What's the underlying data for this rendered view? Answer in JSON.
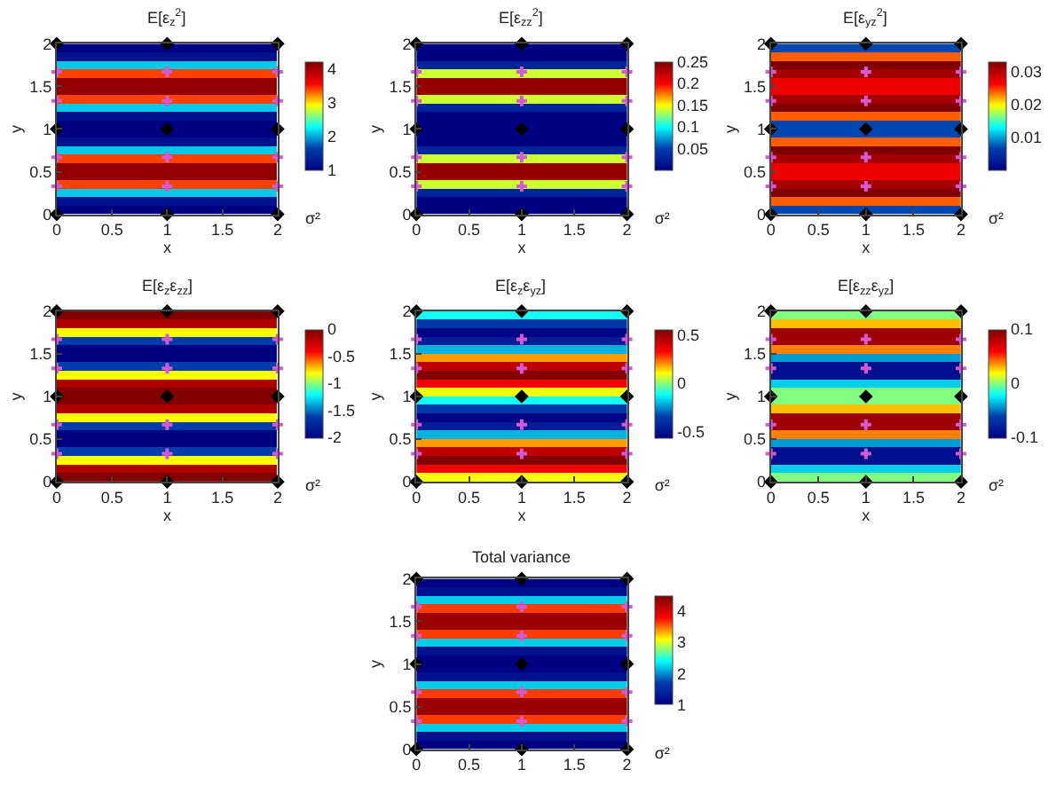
{
  "chart_data": [
    {
      "type": "heatmap",
      "title": "E[ε$_{z}$$^{2}$]",
      "xlabel": "x",
      "ylabel": "y",
      "clabel": "σ²",
      "y": [
        1.95,
        1.85,
        1.75,
        1.65,
        1.55,
        1.45,
        1.35,
        1.25,
        1.15,
        1.05,
        0.95,
        0.85,
        0.75,
        0.65,
        0.55,
        0.45,
        0.35,
        0.25,
        0.15,
        0.05
      ],
      "cells": [
        [
          1.0,
          1.0
        ],
        [
          1.2,
          1.2
        ],
        [
          2.1,
          2.1
        ],
        [
          3.4,
          3.4
        ],
        [
          4.1,
          4.1
        ],
        [
          4.1,
          4.1
        ],
        [
          3.4,
          3.4
        ],
        [
          2.1,
          2.1
        ],
        [
          1.2,
          1.2
        ],
        [
          1.0,
          1.0
        ],
        [
          1.0,
          1.0
        ],
        [
          1.2,
          1.2
        ],
        [
          2.1,
          2.1
        ],
        [
          3.4,
          3.4
        ],
        [
          4.1,
          4.1
        ],
        [
          4.1,
          4.1
        ],
        [
          3.4,
          3.4
        ],
        [
          2.1,
          2.1
        ],
        [
          1.2,
          1.2
        ],
        [
          1.0,
          1.0
        ]
      ],
      "clim": [
        1,
        4.2
      ],
      "cticks": [
        1,
        2,
        3,
        4
      ],
      "xlim": [
        0,
        2
      ],
      "ylim": [
        0,
        2
      ],
      "xticks": [
        0,
        0.5,
        1,
        1.5,
        2
      ],
      "yticks": [
        0,
        0.5,
        1,
        1.5,
        2
      ],
      "series": [
        {
          "type": "scatter",
          "marker": "diamond",
          "color": "#000000",
          "x": [
            0,
            1,
            2,
            0,
            1,
            2,
            0,
            1,
            2
          ],
          "values": [
            0,
            0,
            0,
            1,
            1,
            1,
            2,
            2,
            2
          ]
        },
        {
          "type": "scatter",
          "marker": "cross",
          "color": "#d45ad4",
          "x": [
            0,
            1,
            2,
            0,
            1,
            2,
            0,
            1,
            2,
            0,
            1,
            2
          ],
          "values": [
            0.33,
            0.33,
            0.33,
            0.67,
            0.67,
            0.67,
            1.33,
            1.33,
            1.33,
            1.67,
            1.67,
            1.67
          ]
        }
      ]
    },
    {
      "type": "heatmap",
      "title": "E[ε$_{zz}$$^{2}$]",
      "xlabel": "x",
      "ylabel": "y",
      "clabel": "σ²",
      "y": [
        1.95,
        1.85,
        1.75,
        1.65,
        1.55,
        1.45,
        1.35,
        1.25,
        1.15,
        1.05,
        0.95,
        0.85,
        0.75,
        0.65,
        0.55,
        0.45,
        0.35,
        0.25,
        0.15,
        0.05
      ],
      "cells": [
        [
          0,
          0
        ],
        [
          0,
          0
        ],
        [
          0.03,
          0.03
        ],
        [
          0.14,
          0.14
        ],
        [
          0.24,
          0.24
        ],
        [
          0.24,
          0.24
        ],
        [
          0.14,
          0.14
        ],
        [
          0.03,
          0.03
        ],
        [
          0,
          0
        ],
        [
          0,
          0
        ],
        [
          0,
          0
        ],
        [
          0,
          0
        ],
        [
          0.03,
          0.03
        ],
        [
          0.14,
          0.14
        ],
        [
          0.24,
          0.24
        ],
        [
          0.24,
          0.24
        ],
        [
          0.14,
          0.14
        ],
        [
          0.03,
          0.03
        ],
        [
          0,
          0
        ],
        [
          0,
          0
        ]
      ],
      "clim": [
        0,
        0.25
      ],
      "cticks": [
        0.05,
        0.1,
        0.15,
        0.2,
        0.25
      ],
      "xlim": [
        0,
        2
      ],
      "ylim": [
        0,
        2
      ],
      "xticks": [
        0,
        0.5,
        1,
        1.5,
        2
      ],
      "yticks": [
        0,
        0.5,
        1,
        1.5,
        2
      ],
      "series": [
        {
          "type": "scatter",
          "marker": "diamond",
          "color": "#000000",
          "x": [
            0,
            1,
            2,
            0,
            1,
            2,
            0,
            1,
            2
          ],
          "values": [
            0,
            0,
            0,
            1,
            1,
            1,
            2,
            2,
            2
          ]
        },
        {
          "type": "scatter",
          "marker": "cross",
          "color": "#d45ad4",
          "x": [
            0,
            1,
            2,
            0,
            1,
            2,
            0,
            1,
            2,
            0,
            1,
            2
          ],
          "values": [
            0.33,
            0.33,
            0.33,
            0.67,
            0.67,
            0.67,
            1.33,
            1.33,
            1.33,
            1.67,
            1.67,
            1.67
          ]
        }
      ]
    },
    {
      "type": "heatmap",
      "title": "E[ε$_{yz}$$^{2}$]",
      "xlabel": "x",
      "ylabel": "y",
      "clabel": "σ²",
      "y": [
        1.95,
        1.85,
        1.75,
        1.65,
        1.55,
        1.45,
        1.35,
        1.25,
        1.15,
        1.05,
        0.95,
        0.85,
        0.75,
        0.65,
        0.55,
        0.45,
        0.35,
        0.25,
        0.15,
        0.05
      ],
      "cells": [
        [
          0.007,
          0.007
        ],
        [
          0.024,
          0.024
        ],
        [
          0.033,
          0.033
        ],
        [
          0.031,
          0.031
        ],
        [
          0.027,
          0.027
        ],
        [
          0.027,
          0.027
        ],
        [
          0.031,
          0.031
        ],
        [
          0.033,
          0.033
        ],
        [
          0.024,
          0.024
        ],
        [
          0.007,
          0.007
        ],
        [
          0.007,
          0.007
        ],
        [
          0.024,
          0.024
        ],
        [
          0.033,
          0.033
        ],
        [
          0.031,
          0.031
        ],
        [
          0.027,
          0.027
        ],
        [
          0.027,
          0.027
        ],
        [
          0.031,
          0.031
        ],
        [
          0.033,
          0.033
        ],
        [
          0.024,
          0.024
        ],
        [
          0.007,
          0.007
        ]
      ],
      "clim": [
        0,
        0.033
      ],
      "cticks": [
        0.01,
        0.02,
        0.03
      ],
      "xlim": [
        0,
        2
      ],
      "ylim": [
        0,
        2
      ],
      "xticks": [
        0,
        0.5,
        1,
        1.5,
        2
      ],
      "yticks": [
        0,
        0.5,
        1,
        1.5,
        2
      ],
      "series": [
        {
          "type": "scatter",
          "marker": "diamond",
          "color": "#000000",
          "x": [
            0,
            1,
            2,
            0,
            1,
            2,
            0,
            1,
            2
          ],
          "values": [
            0,
            0,
            0,
            1,
            1,
            1,
            2,
            2,
            2
          ]
        },
        {
          "type": "scatter",
          "marker": "cross",
          "color": "#d45ad4",
          "x": [
            0,
            1,
            2,
            0,
            1,
            2,
            0,
            1,
            2,
            0,
            1,
            2
          ],
          "values": [
            0.33,
            0.33,
            0.33,
            0.67,
            0.67,
            0.67,
            1.33,
            1.33,
            1.33,
            1.67,
            1.67,
            1.67
          ]
        }
      ]
    },
    {
      "type": "heatmap",
      "title": "E[ε$_{z}$ε$_{zz}$]",
      "xlabel": "x",
      "ylabel": "y",
      "clabel": "σ²",
      "y": [
        1.95,
        1.85,
        1.75,
        1.65,
        1.55,
        1.45,
        1.35,
        1.25,
        1.15,
        1.05,
        0.95,
        0.85,
        0.75,
        0.65,
        0.55,
        0.45,
        0.35,
        0.25,
        0.15,
        0.05
      ],
      "cells": [
        [
          0,
          0
        ],
        [
          -0.15,
          -0.15
        ],
        [
          -0.8,
          -0.8
        ],
        [
          -1.6,
          -1.6
        ],
        [
          -2,
          -2
        ],
        [
          -2,
          -2
        ],
        [
          -1.6,
          -1.6
        ],
        [
          -0.8,
          -0.8
        ],
        [
          -0.15,
          -0.15
        ],
        [
          0,
          0
        ],
        [
          0,
          0
        ],
        [
          -0.15,
          -0.15
        ],
        [
          -0.8,
          -0.8
        ],
        [
          -1.6,
          -1.6
        ],
        [
          -2,
          -2
        ],
        [
          -2,
          -2
        ],
        [
          -1.6,
          -1.6
        ],
        [
          -0.8,
          -0.8
        ],
        [
          -0.15,
          -0.15
        ],
        [
          0,
          0
        ]
      ],
      "clim": [
        -2,
        0
      ],
      "cticks": [
        -2,
        -1.5,
        -1,
        -0.5,
        0
      ],
      "xlim": [
        0,
        2
      ],
      "ylim": [
        0,
        2
      ],
      "xticks": [
        0,
        0.5,
        1,
        1.5,
        2
      ],
      "yticks": [
        0,
        0.5,
        1,
        1.5,
        2
      ],
      "series": [
        {
          "type": "scatter",
          "marker": "diamond",
          "color": "#000000",
          "x": [
            0,
            1,
            2,
            0,
            1,
            2,
            0,
            1,
            2
          ],
          "values": [
            0,
            0,
            0,
            1,
            1,
            1,
            2,
            2,
            2
          ]
        },
        {
          "type": "scatter",
          "marker": "cross",
          "color": "#d45ad4",
          "x": [
            0,
            1,
            2,
            0,
            1,
            2,
            0,
            1,
            2,
            0,
            1,
            2
          ],
          "values": [
            0.33,
            0.33,
            0.33,
            0.67,
            0.67,
            0.67,
            1.33,
            1.33,
            1.33,
            1.67,
            1.67,
            1.67
          ]
        }
      ]
    },
    {
      "type": "heatmap",
      "title": "E[ε$_{z}$ε$_{yz}$]",
      "xlabel": "x",
      "ylabel": "y",
      "clabel": "σ²",
      "y": [
        1.95,
        1.85,
        1.75,
        1.65,
        1.55,
        1.45,
        1.35,
        1.25,
        1.15,
        1.05,
        0.95,
        0.85,
        0.75,
        0.65,
        0.55,
        0.45,
        0.35,
        0.25,
        0.15,
        0.05
      ],
      "cells": [
        [
          -0.1,
          -0.1
        ],
        [
          -0.35,
          -0.35
        ],
        [
          -0.55,
          -0.55
        ],
        [
          -0.45,
          -0.45
        ],
        [
          -0.2,
          -0.2
        ],
        [
          0.2,
          0.2
        ],
        [
          0.45,
          0.45
        ],
        [
          0.55,
          0.55
        ],
        [
          0.35,
          0.35
        ],
        [
          0.1,
          0.1
        ],
        [
          -0.1,
          -0.1
        ],
        [
          -0.35,
          -0.35
        ],
        [
          -0.55,
          -0.55
        ],
        [
          -0.45,
          -0.45
        ],
        [
          -0.2,
          -0.2
        ],
        [
          0.2,
          0.2
        ],
        [
          0.45,
          0.45
        ],
        [
          0.55,
          0.55
        ],
        [
          0.35,
          0.35
        ],
        [
          0.1,
          0.1
        ]
      ],
      "clim": [
        -0.56,
        0.56
      ],
      "cticks": [
        -0.5,
        0,
        0.5
      ],
      "xlim": [
        0,
        2
      ],
      "ylim": [
        0,
        2
      ],
      "xticks": [
        0,
        0.5,
        1,
        1.5,
        2
      ],
      "yticks": [
        0,
        0.5,
        1,
        1.5,
        2
      ],
      "series": [
        {
          "type": "scatter",
          "marker": "diamond",
          "color": "#000000",
          "x": [
            0,
            1,
            2,
            0,
            1,
            2,
            0,
            1,
            2
          ],
          "values": [
            0,
            0,
            0,
            1,
            1,
            1,
            2,
            2,
            2
          ]
        },
        {
          "type": "scatter",
          "marker": "cross",
          "color": "#d45ad4",
          "x": [
            0,
            1,
            2,
            0,
            1,
            2,
            0,
            1,
            2,
            0,
            1,
            2
          ],
          "values": [
            0.33,
            0.33,
            0.33,
            0.67,
            0.67,
            0.67,
            1.33,
            1.33,
            1.33,
            1.67,
            1.67,
            1.67
          ]
        }
      ]
    },
    {
      "type": "heatmap",
      "title": "E[ε$_{zz}$ε$_{yz}$]",
      "xlabel": "x",
      "ylabel": "y",
      "clabel": "σ²",
      "y": [
        1.95,
        1.85,
        1.75,
        1.65,
        1.55,
        1.45,
        1.35,
        1.25,
        1.15,
        1.05,
        0.95,
        0.85,
        0.75,
        0.65,
        0.55,
        0.45,
        0.35,
        0.25,
        0.15,
        0.05
      ],
      "cells": [
        [
          0,
          0
        ],
        [
          0.03,
          0.03
        ],
        [
          0.09,
          0.09
        ],
        [
          0.09,
          0.09
        ],
        [
          0.04,
          0.04
        ],
        [
          -0.04,
          -0.04
        ],
        [
          -0.09,
          -0.09
        ],
        [
          -0.09,
          -0.09
        ],
        [
          -0.03,
          -0.03
        ],
        [
          0,
          0
        ],
        [
          0,
          0
        ],
        [
          0.03,
          0.03
        ],
        [
          0.09,
          0.09
        ],
        [
          0.09,
          0.09
        ],
        [
          0.04,
          0.04
        ],
        [
          -0.04,
          -0.04
        ],
        [
          -0.09,
          -0.09
        ],
        [
          -0.09,
          -0.09
        ],
        [
          -0.03,
          -0.03
        ],
        [
          0,
          0
        ]
      ],
      "clim": [
        -0.1,
        0.1
      ],
      "cticks": [
        -0.1,
        0,
        0.1
      ],
      "xlim": [
        0,
        2
      ],
      "ylim": [
        0,
        2
      ],
      "xticks": [
        0,
        0.5,
        1,
        1.5,
        2
      ],
      "yticks": [
        0,
        0.5,
        1,
        1.5,
        2
      ],
      "series": [
        {
          "type": "scatter",
          "marker": "diamond",
          "color": "#000000",
          "x": [
            0,
            1,
            2,
            0,
            1,
            2,
            0,
            1,
            2
          ],
          "values": [
            0,
            0,
            0,
            1,
            1,
            1,
            2,
            2,
            2
          ]
        },
        {
          "type": "scatter",
          "marker": "cross",
          "color": "#d45ad4",
          "x": [
            0,
            1,
            2,
            0,
            1,
            2,
            0,
            1,
            2,
            0,
            1,
            2
          ],
          "values": [
            0.33,
            0.33,
            0.33,
            0.67,
            0.67,
            0.67,
            1.33,
            1.33,
            1.33,
            1.67,
            1.67,
            1.67
          ]
        }
      ]
    },
    {
      "type": "heatmap",
      "title": "Total variance",
      "ylabel": "y",
      "clabel": "σ²",
      "y": [
        1.95,
        1.85,
        1.75,
        1.65,
        1.55,
        1.45,
        1.35,
        1.25,
        1.15,
        1.05,
        0.95,
        0.85,
        0.75,
        0.65,
        0.55,
        0.45,
        0.35,
        0.25,
        0.15,
        0.05
      ],
      "cells": [
        [
          1.0,
          1.0
        ],
        [
          1.2,
          1.2
        ],
        [
          2.2,
          2.2
        ],
        [
          3.6,
          3.6
        ],
        [
          4.3,
          4.3
        ],
        [
          4.3,
          4.3
        ],
        [
          3.6,
          3.6
        ],
        [
          2.2,
          2.2
        ],
        [
          1.2,
          1.2
        ],
        [
          1.0,
          1.0
        ],
        [
          1.0,
          1.0
        ],
        [
          1.2,
          1.2
        ],
        [
          2.2,
          2.2
        ],
        [
          3.6,
          3.6
        ],
        [
          4.3,
          4.3
        ],
        [
          4.3,
          4.3
        ],
        [
          3.6,
          3.6
        ],
        [
          2.2,
          2.2
        ],
        [
          1.2,
          1.2
        ],
        [
          1.0,
          1.0
        ]
      ],
      "clim": [
        1,
        4.45
      ],
      "cticks": [
        1,
        2,
        3,
        4
      ],
      "xlim": [
        0,
        2
      ],
      "ylim": [
        0,
        2
      ],
      "xticks": [
        0,
        0.5,
        1,
        1.5,
        2
      ],
      "yticks": [
        0,
        0.5,
        1,
        1.5,
        2
      ],
      "series": [
        {
          "type": "scatter",
          "marker": "diamond",
          "color": "#000000",
          "x": [
            0,
            1,
            2,
            0,
            1,
            2,
            0,
            1,
            2
          ],
          "values": [
            0,
            0,
            0,
            1,
            1,
            1,
            2,
            2,
            2
          ]
        },
        {
          "type": "scatter",
          "marker": "cross",
          "color": "#d45ad4",
          "x": [
            0,
            1,
            2,
            0,
            1,
            2,
            0,
            1,
            2,
            0,
            1,
            2
          ],
          "values": [
            0.33,
            0.33,
            0.33,
            0.67,
            0.67,
            0.67,
            1.33,
            1.33,
            1.33,
            1.67,
            1.67,
            1.67
          ]
        }
      ]
    }
  ]
}
